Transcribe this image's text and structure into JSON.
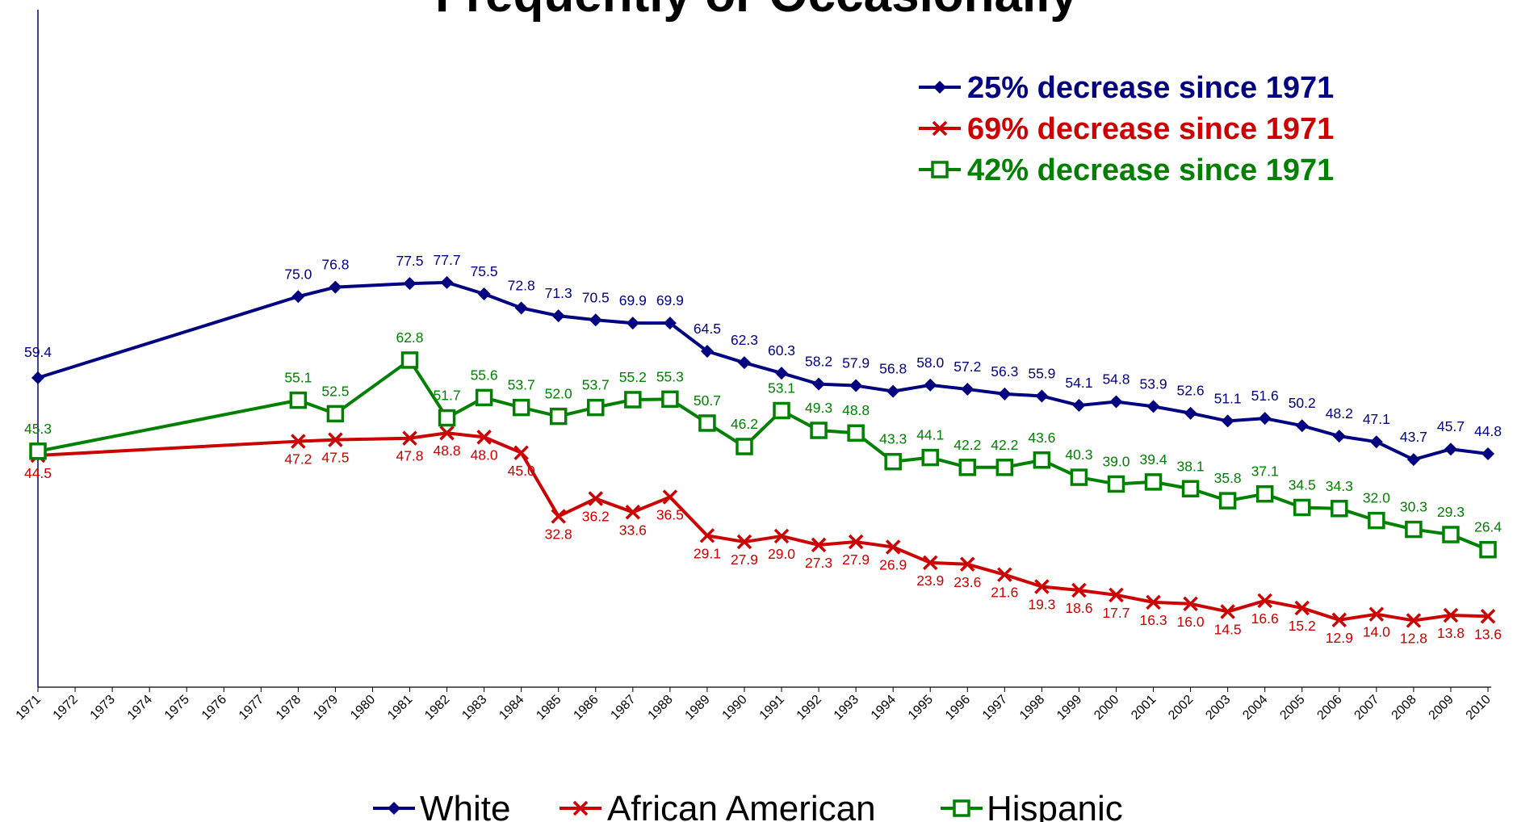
{
  "chart_data": {
    "type": "line",
    "title": "Frequently or Occasionally",
    "xlabel": "",
    "ylabel": "",
    "ylim": [
      0,
      85
    ],
    "grid": false,
    "legend_position": "bottom",
    "categories": [
      "1971",
      "1972",
      "1973",
      "1974",
      "1975",
      "1976",
      "1977",
      "1978",
      "1979",
      "1980",
      "1981",
      "1982",
      "1983",
      "1984",
      "1985",
      "1986",
      "1987",
      "1988",
      "1989",
      "1990",
      "1991",
      "1992",
      "1993",
      "1994",
      "1995",
      "1996",
      "1997",
      "1998",
      "1999",
      "2000",
      "2001",
      "2002",
      "2003",
      "2004",
      "2005",
      "2006",
      "2007",
      "2008",
      "2009",
      "2010"
    ],
    "series": [
      {
        "name": "White",
        "color": "#000080",
        "marker": "diamond",
        "x": [
          "1971",
          "1978",
          "1979",
          "1981",
          "1982",
          "1983",
          "1984",
          "1985",
          "1986",
          "1987",
          "1988",
          "1989",
          "1990",
          "1991",
          "1992",
          "1993",
          "1994",
          "1995",
          "1996",
          "1997",
          "1998",
          "1999",
          "2000",
          "2001",
          "2002",
          "2003",
          "2004",
          "2005",
          "2006",
          "2007",
          "2008",
          "2009",
          "2010"
        ],
        "values": [
          59.4,
          75.0,
          76.8,
          77.5,
          77.7,
          75.5,
          72.8,
          71.3,
          70.5,
          69.9,
          69.9,
          64.5,
          62.3,
          60.3,
          58.2,
          57.9,
          56.8,
          58.0,
          57.2,
          56.3,
          55.9,
          54.1,
          54.8,
          53.9,
          52.6,
          51.1,
          51.6,
          50.2,
          48.2,
          47.1,
          43.7,
          45.7,
          44.8
        ],
        "labels": [
          "59.4",
          "75.0",
          "76.8",
          "77.5",
          "77.7",
          "75.5",
          "72.8",
          "71.3",
          "70.5",
          "69.9",
          "69.9",
          "64.5",
          "62.3",
          "60.3",
          "58.2",
          "57.9",
          "56.8",
          "58.0",
          "57.2",
          "56.3",
          "55.9",
          "54.1",
          "54.8",
          "53.9",
          "52.6",
          "51.1",
          "51.6",
          "50.2",
          "48.2",
          "47.1",
          "43.7",
          "45.7",
          "44.8"
        ]
      },
      {
        "name": "African American",
        "color": "#cc0000",
        "marker": "x",
        "x": [
          "1971",
          "1978",
          "1979",
          "1981",
          "1982",
          "1983",
          "1984",
          "1985",
          "1986",
          "1987",
          "1988",
          "1989",
          "1990",
          "1991",
          "1992",
          "1993",
          "1994",
          "1995",
          "1996",
          "1997",
          "1998",
          "1999",
          "2000",
          "2001",
          "2002",
          "2003",
          "2004",
          "2005",
          "2006",
          "2007",
          "2008",
          "2009",
          "2010"
        ],
        "values": [
          44.5,
          47.2,
          47.5,
          47.8,
          48.8,
          48.0,
          45.0,
          32.8,
          36.2,
          33.6,
          36.5,
          29.1,
          27.9,
          29.0,
          27.3,
          27.9,
          26.9,
          23.9,
          23.6,
          21.6,
          19.3,
          18.6,
          17.7,
          16.3,
          16.0,
          14.5,
          16.6,
          15.2,
          12.9,
          14.0,
          12.8,
          13.8,
          13.6
        ],
        "labels": [
          "44.5",
          "47.2",
          "47.5",
          "47.8",
          "48.8",
          "48.0",
          "45.0",
          "32.8",
          "36.2",
          "33.6",
          "36.5",
          "29.1",
          "27.9",
          "29.0",
          "27.3",
          "27.9",
          "26.9",
          "23.9",
          "23.6",
          "21.6",
          "19.3",
          "18.6",
          "17.7",
          "16.3",
          "16.0",
          "14.5",
          "16.6",
          "15.2",
          "12.9",
          "14.0",
          "12.8",
          "13.8",
          "13.6"
        ]
      },
      {
        "name": "Hispanic",
        "color": "#008000",
        "marker": "square",
        "x": [
          "1971",
          "1978",
          "1979",
          "1981",
          "1982",
          "1983",
          "1984",
          "1985",
          "1986",
          "1987",
          "1988",
          "1989",
          "1990",
          "1991",
          "1992",
          "1993",
          "1994",
          "1995",
          "1996",
          "1997",
          "1998",
          "1999",
          "2000",
          "2001",
          "2002",
          "2003",
          "2004",
          "2005",
          "2006",
          "2007",
          "2008",
          "2009",
          "2010"
        ],
        "values": [
          45.3,
          55.1,
          52.5,
          62.8,
          51.7,
          55.6,
          53.7,
          52.0,
          53.7,
          55.2,
          55.3,
          50.7,
          46.2,
          53.1,
          49.3,
          48.8,
          43.3,
          44.1,
          42.2,
          42.2,
          43.6,
          40.3,
          39.0,
          39.4,
          38.1,
          35.8,
          37.1,
          34.5,
          34.3,
          32.0,
          30.3,
          29.3,
          26.4
        ],
        "labels": [
          "45.3",
          "55.1",
          "52.5",
          "62.8",
          "51.7",
          "55.6",
          "53.7",
          "52.0",
          "53.7",
          "55.2",
          "55.3",
          "50.7",
          "46.2",
          "53.1",
          "49.3",
          "48.8",
          "43.3",
          "44.1",
          "42.2",
          "42.2",
          "43.6",
          "40.3",
          "39.0",
          "39.4",
          "38.1",
          "35.8",
          "37.1",
          "34.5",
          "34.3",
          "32.0",
          "30.3",
          "29.3",
          "26.4"
        ]
      }
    ],
    "annotations": [
      {
        "text": "25% decrease since 1971",
        "series": "White"
      },
      {
        "text": "69% decrease since 1971",
        "series": "African American"
      },
      {
        "text": "42% decrease since 1971",
        "series": "Hispanic"
      }
    ]
  }
}
